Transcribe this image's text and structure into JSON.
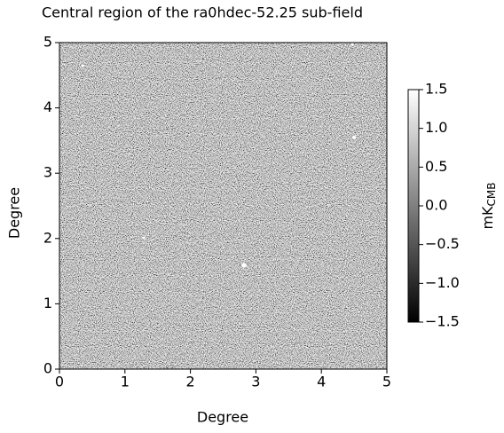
{
  "chart_data": {
    "type": "image",
    "title": "Central region of the ra0hdec-52.25 sub-field",
    "xlabel": "Degree",
    "ylabel": "Degree",
    "xlim": [
      0,
      5
    ],
    "xticks": [
      0,
      1,
      2,
      3,
      4,
      5
    ],
    "ylim": [
      0,
      5
    ],
    "yticks": [
      0,
      1,
      2,
      3,
      4,
      5
    ],
    "colorbar_label": "mK",
    "colorbar_label_sub": "CMB",
    "clim": [
      -1.5,
      1.5
    ],
    "cticks": [
      {
        "value": -1.5,
        "label": "−1.5"
      },
      {
        "value": -1,
        "label": "−1.0"
      },
      {
        "value": -0.5,
        "label": "−0.5"
      },
      {
        "value": 0,
        "label": "0.0"
      },
      0.5,
      {
        "value": 1,
        "label": "1.0"
      },
      1.5
    ],
    "colormap": [
      "#000000",
      "#ffffff"
    ]
  }
}
